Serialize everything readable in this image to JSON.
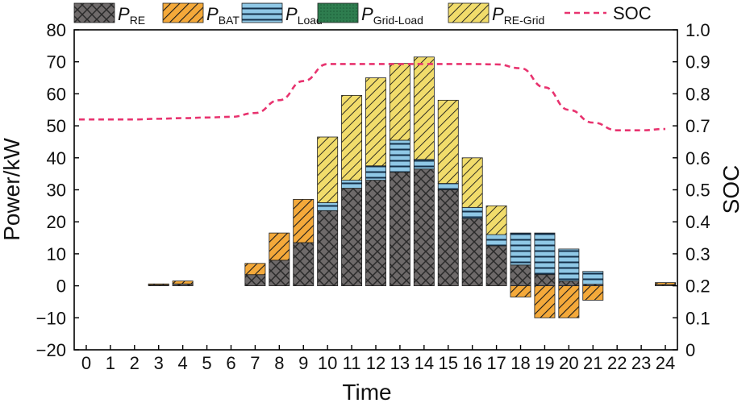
{
  "chart_data": {
    "type": "bar",
    "stacked": true,
    "xlabel": "Time",
    "ylabel": "Power/kW",
    "y2label": "SOC",
    "ylim": [
      -20,
      80
    ],
    "y2lim": [
      0,
      1.0
    ],
    "yticks": [
      -20,
      -10,
      0,
      10,
      20,
      30,
      40,
      50,
      60,
      70,
      80
    ],
    "yticklabels": [
      "−20",
      "−10",
      "0",
      "10",
      "20",
      "30",
      "40",
      "50",
      "60",
      "70",
      "80"
    ],
    "y2ticks": [
      0,
      0.1,
      0.2,
      0.3,
      0.4,
      0.5,
      0.6,
      0.7,
      0.8,
      0.9,
      1.0
    ],
    "y2ticklabels": [
      "0",
      "0.1",
      "0.2",
      "0.3",
      "0.4",
      "0.5",
      "0.6",
      "0.7",
      "0.8",
      "0.9",
      "1.0"
    ],
    "categories": [
      "0",
      "1",
      "2",
      "3",
      "4",
      "5",
      "6",
      "7",
      "8",
      "9",
      "10",
      "11",
      "12",
      "13",
      "14",
      "15",
      "16",
      "17",
      "18",
      "19",
      "20",
      "21",
      "22",
      "23",
      "24"
    ],
    "series": [
      {
        "name": "P_RE",
        "label_main": "P",
        "label_sub": "RE",
        "color": "#6e6a6a",
        "pattern": "crosshatch",
        "values": [
          0,
          0,
          0,
          0.3,
          0.6,
          0,
          0,
          3.5,
          8,
          13.5,
          23.5,
          30.5,
          33,
          35.5,
          36.5,
          30,
          21,
          12.5,
          6.5,
          3.5,
          1.5,
          0.5,
          0,
          0,
          0.4
        ]
      },
      {
        "name": "P_BAT",
        "label_main": "P",
        "label_sub": "BAT",
        "color": "#f4a93a",
        "pattern": "hatch",
        "values": [
          0,
          0,
          0,
          0.3,
          0.9,
          0,
          0,
          3.5,
          8.5,
          13.5,
          0,
          0,
          0,
          0,
          0,
          0,
          0,
          0,
          -3.5,
          -10,
          -10,
          -4.5,
          0,
          0,
          0.6
        ]
      },
      {
        "name": "P_Load",
        "label_main": "P",
        "label_sub": "Load",
        "color": "#8fc8e6",
        "pattern": "hlines",
        "values": [
          0,
          0,
          0,
          0,
          0,
          0,
          0,
          0,
          0,
          0,
          2.5,
          2.5,
          4.5,
          10,
          3,
          2,
          3.5,
          3.5,
          10,
          13,
          10,
          4,
          0,
          0,
          0
        ]
      },
      {
        "name": "P_Grid-Load",
        "label_main": "P",
        "label_sub": "Grid-Load",
        "color": "#2e7d4f",
        "pattern": "dots",
        "values": [
          0,
          0,
          0,
          0,
          0,
          0,
          0,
          0,
          0,
          0,
          0,
          0,
          0,
          0,
          0,
          0,
          0,
          0,
          0,
          0,
          0,
          0,
          0,
          0,
          0
        ]
      },
      {
        "name": "P_RE-Grid",
        "label_main": "P",
        "label_sub": "RE-Grid",
        "color": "#f1dc6b",
        "pattern": "hatch2",
        "values": [
          0,
          0,
          0,
          0,
          0,
          0,
          0,
          0,
          0,
          0,
          20.5,
          26.5,
          27.5,
          24,
          32,
          26,
          15.5,
          9,
          0,
          0,
          0,
          0,
          0,
          0,
          0
        ]
      }
    ],
    "soc": {
      "name": "SOC",
      "color": "#e8336f",
      "values": [
        0.72,
        0.72,
        0.72,
        0.722,
        0.724,
        0.726,
        0.728,
        0.74,
        0.78,
        0.84,
        0.893,
        0.893,
        0.893,
        0.893,
        0.893,
        0.893,
        0.893,
        0.892,
        0.88,
        0.82,
        0.75,
        0.71,
        0.686,
        0.686,
        0.69
      ]
    },
    "legend_position": "top"
  }
}
